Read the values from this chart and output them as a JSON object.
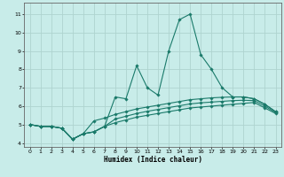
{
  "title": "",
  "xlabel": "Humidex (Indice chaleur)",
  "ylabel": "",
  "background_color": "#c8ece9",
  "grid_color": "#aed4cf",
  "line_color": "#1a7a6a",
  "spine_color": "#666666",
  "xlim": [
    -0.5,
    23.5
  ],
  "ylim": [
    3.8,
    11.6
  ],
  "xticks": [
    0,
    1,
    2,
    3,
    4,
    5,
    6,
    7,
    8,
    9,
    10,
    11,
    12,
    13,
    14,
    15,
    16,
    17,
    18,
    19,
    20,
    21,
    22,
    23
  ],
  "yticks": [
    4,
    5,
    6,
    7,
    8,
    9,
    10,
    11
  ],
  "series1": [
    [
      0,
      5.0
    ],
    [
      1,
      4.9
    ],
    [
      2,
      4.9
    ],
    [
      3,
      4.8
    ],
    [
      4,
      4.2
    ],
    [
      5,
      4.5
    ],
    [
      6,
      4.6
    ],
    [
      7,
      4.9
    ],
    [
      8,
      6.5
    ],
    [
      9,
      6.4
    ],
    [
      10,
      8.2
    ],
    [
      11,
      7.0
    ],
    [
      12,
      6.6
    ],
    [
      13,
      9.0
    ],
    [
      14,
      10.7
    ],
    [
      15,
      11.0
    ],
    [
      16,
      8.8
    ],
    [
      17,
      8.0
    ],
    [
      18,
      7.0
    ],
    [
      19,
      6.5
    ],
    [
      20,
      6.5
    ],
    [
      21,
      6.4
    ],
    [
      22,
      6.1
    ],
    [
      23,
      5.7
    ]
  ],
  "series2": [
    [
      0,
      5.0
    ],
    [
      1,
      4.9
    ],
    [
      2,
      4.9
    ],
    [
      3,
      4.8
    ],
    [
      4,
      4.2
    ],
    [
      5,
      4.5
    ],
    [
      6,
      5.2
    ],
    [
      7,
      5.35
    ],
    [
      8,
      5.55
    ],
    [
      9,
      5.7
    ],
    [
      10,
      5.85
    ],
    [
      11,
      5.95
    ],
    [
      12,
      6.05
    ],
    [
      13,
      6.15
    ],
    [
      14,
      6.25
    ],
    [
      15,
      6.35
    ],
    [
      16,
      6.4
    ],
    [
      17,
      6.45
    ],
    [
      18,
      6.48
    ],
    [
      19,
      6.5
    ],
    [
      20,
      6.5
    ],
    [
      21,
      6.4
    ],
    [
      22,
      6.1
    ],
    [
      23,
      5.7
    ]
  ],
  "series3": [
    [
      0,
      5.0
    ],
    [
      1,
      4.9
    ],
    [
      2,
      4.9
    ],
    [
      3,
      4.8
    ],
    [
      4,
      4.2
    ],
    [
      5,
      4.5
    ],
    [
      6,
      4.6
    ],
    [
      7,
      4.9
    ],
    [
      8,
      5.1
    ],
    [
      9,
      5.25
    ],
    [
      10,
      5.4
    ],
    [
      11,
      5.5
    ],
    [
      12,
      5.6
    ],
    [
      13,
      5.7
    ],
    [
      14,
      5.8
    ],
    [
      15,
      5.9
    ],
    [
      16,
      5.95
    ],
    [
      17,
      6.0
    ],
    [
      18,
      6.05
    ],
    [
      19,
      6.1
    ],
    [
      20,
      6.15
    ],
    [
      21,
      6.2
    ],
    [
      22,
      5.9
    ],
    [
      23,
      5.6
    ]
  ],
  "series4": [
    [
      0,
      5.0
    ],
    [
      1,
      4.9
    ],
    [
      2,
      4.9
    ],
    [
      3,
      4.8
    ],
    [
      4,
      4.2
    ],
    [
      5,
      4.5
    ],
    [
      6,
      4.6
    ],
    [
      7,
      4.9
    ],
    [
      8,
      5.3
    ],
    [
      9,
      5.45
    ],
    [
      10,
      5.6
    ],
    [
      11,
      5.72
    ],
    [
      12,
      5.82
    ],
    [
      13,
      5.92
    ],
    [
      14,
      6.02
    ],
    [
      15,
      6.12
    ],
    [
      16,
      6.18
    ],
    [
      17,
      6.22
    ],
    [
      18,
      6.26
    ],
    [
      19,
      6.3
    ],
    [
      20,
      6.32
    ],
    [
      21,
      6.3
    ],
    [
      22,
      6.0
    ],
    [
      23,
      5.65
    ]
  ]
}
